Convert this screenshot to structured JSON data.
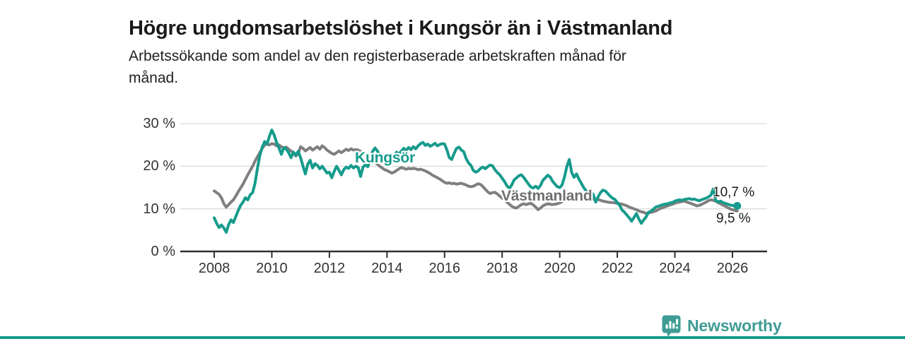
{
  "chart_data": {
    "type": "line",
    "title": "Högre ungdomsarbetslöshet i Kungsör än i Västmanland",
    "subtitle_lines": [
      "Arbetssökande som andel av den registerbaserade arbetskraften månad för",
      "månad."
    ],
    "unit": "%",
    "grid": true,
    "legend_position": "inline-labels",
    "ylim": [
      0,
      30
    ],
    "xlim": [
      2006.8,
      2027.2
    ],
    "x_start": 2008,
    "points_per_year": 12,
    "x_ticks": [
      {
        "value": 2008,
        "label": "2008"
      },
      {
        "value": 2010,
        "label": "2010"
      },
      {
        "value": 2012,
        "label": "2012"
      },
      {
        "value": 2014,
        "label": "2014"
      },
      {
        "value": 2016,
        "label": "2016"
      },
      {
        "value": 2018,
        "label": "2018"
      },
      {
        "value": 2020,
        "label": "2020"
      },
      {
        "value": 2022,
        "label": "2022"
      },
      {
        "value": 2024,
        "label": "2024"
      },
      {
        "value": 2026,
        "label": "2026"
      }
    ],
    "y_ticks": [
      {
        "value": 30,
        "label": "30 %"
      },
      {
        "value": 20,
        "label": "20 %"
      },
      {
        "value": 10,
        "label": "10 %"
      },
      {
        "value": 0,
        "label": "0 %"
      }
    ],
    "series": [
      {
        "id": "kungsor",
        "name": "Kungsör",
        "color": "#169b8c",
        "end_label": "10,7 %",
        "end_value": 10.7,
        "values": [
          7.9,
          6.6,
          5.6,
          6.2,
          5.5,
          4.5,
          6.3,
          7.4,
          6.8,
          8.2,
          9.6,
          10.8,
          11.6,
          12.6,
          12.1,
          13.3,
          13.8,
          16.0,
          19.5,
          22.5,
          24.5,
          25.8,
          25.2,
          27.0,
          28.5,
          27.3,
          25.6,
          24.3,
          22.8,
          24.4,
          24.0,
          23.2,
          22.0,
          23.3,
          22.6,
          23.5,
          22.0,
          20.0,
          18.2,
          20.5,
          21.4,
          19.6,
          20.6,
          20.2,
          19.4,
          20.0,
          19.2,
          18.4,
          18.6,
          17.3,
          18.8,
          20.0,
          19.0,
          18.0,
          19.2,
          19.8,
          19.5,
          20.2,
          19.6,
          20.0,
          19.7,
          17.6,
          19.8,
          20.3,
          19.9,
          21.5,
          23.5,
          24.3,
          23.6,
          22.5,
          21.8,
          21.2,
          21.5,
          22.3,
          21.8,
          22.6,
          23.3,
          22.8,
          23.6,
          24.2,
          23.7,
          24.4,
          23.9,
          24.6,
          24.1,
          24.8,
          25.3,
          25.6,
          24.9,
          25.2,
          24.7,
          25.0,
          25.4,
          24.8,
          25.1,
          25.3,
          25.2,
          23.8,
          22.0,
          21.6,
          23.0,
          24.2,
          24.5,
          23.8,
          23.4,
          21.8,
          20.8,
          20.2,
          19.0,
          18.6,
          18.9,
          19.5,
          19.8,
          19.4,
          19.9,
          20.3,
          20.1,
          19.2,
          18.5,
          18.0,
          17.2,
          16.4,
          15.4,
          14.8,
          15.6,
          16.8,
          17.3,
          17.8,
          18.0,
          17.4,
          16.6,
          15.8,
          15.1,
          14.9,
          15.3,
          14.8,
          15.5,
          16.7,
          17.3,
          17.9,
          17.5,
          16.5,
          15.8,
          15.2,
          15.0,
          15.6,
          17.5,
          20.0,
          21.6,
          18.5,
          17.4,
          18.2,
          17.0,
          16.0,
          15.0,
          14.2,
          13.5,
          13.8,
          13.4,
          11.6,
          12.8,
          13.8,
          14.4,
          14.2,
          13.6,
          13.0,
          12.5,
          12.2,
          11.5,
          10.8,
          9.7,
          9.2,
          8.5,
          7.9,
          7.1,
          8.0,
          8.9,
          7.6,
          6.6,
          7.4,
          8.1,
          9.2,
          9.4,
          9.9,
          10.4,
          10.6,
          10.8,
          11.0,
          11.1,
          11.2,
          11.4,
          11.5,
          11.8,
          12.0,
          12.1,
          12.0,
          12.2,
          12.3,
          12.4,
          12.2,
          12.3,
          12.1,
          11.9,
          12.1,
          12.3,
          12.5,
          12.8,
          13.2,
          14.7,
          12.0,
          11.6,
          11.8,
          11.5,
          11.3,
          11.1,
          10.9,
          10.8,
          10.7,
          10.7
        ]
      },
      {
        "id": "vastmanland",
        "name": "Västmanland",
        "color": "#7f7f7f",
        "end_label": "9,5 %",
        "end_value": 9.5,
        "values": [
          14.2,
          13.8,
          13.4,
          12.6,
          11.2,
          10.4,
          11.0,
          11.6,
          12.1,
          13.0,
          14.0,
          14.9,
          15.8,
          16.9,
          18.0,
          19.0,
          20.0,
          21.2,
          22.2,
          23.2,
          24.2,
          25.0,
          25.2,
          25.0,
          25.3,
          25.2,
          24.8,
          25.0,
          24.6,
          24.2,
          24.5,
          24.0,
          23.6,
          23.2,
          22.4,
          23.0,
          24.6,
          24.2,
          23.6,
          24.0,
          24.4,
          23.8,
          24.2,
          24.6,
          24.0,
          24.8,
          24.4,
          23.8,
          23.4,
          23.0,
          22.8,
          23.2,
          23.6,
          23.2,
          23.6,
          24.0,
          23.7,
          24.1,
          23.8,
          23.9,
          23.8,
          23.5,
          23.2,
          22.8,
          22.4,
          21.9,
          21.4,
          21.0,
          20.5,
          20.0,
          19.6,
          19.2,
          19.0,
          18.7,
          18.4,
          18.6,
          19.0,
          19.4,
          19.7,
          19.5,
          19.3,
          19.5,
          19.4,
          19.5,
          19.4,
          19.2,
          19.3,
          19.1,
          18.9,
          18.6,
          18.3,
          17.9,
          17.6,
          17.3,
          17.0,
          16.6,
          16.2,
          16.0,
          16.1,
          15.9,
          16.0,
          15.8,
          15.9,
          16.0,
          15.8,
          15.6,
          15.3,
          15.2,
          15.3,
          15.6,
          15.9,
          15.7,
          15.2,
          14.6,
          14.0,
          13.6,
          13.8,
          13.9,
          13.5,
          13.0,
          12.5,
          12.2,
          11.6,
          11.1,
          10.6,
          10.3,
          10.2,
          10.6,
          11.0,
          11.2,
          11.0,
          11.2,
          11.3,
          10.9,
          10.4,
          9.8,
          10.2,
          10.7,
          11.0,
          11.2,
          11.1,
          11.0,
          11.1,
          11.2,
          11.4,
          11.7,
          12.4,
          13.0,
          13.4,
          13.5,
          13.6,
          13.4,
          13.2,
          13.0,
          12.9,
          12.8,
          12.6,
          12.5,
          12.3,
          12.1,
          12.2,
          12.0,
          11.8,
          11.7,
          11.6,
          11.5,
          11.5,
          11.4,
          11.3,
          11.2,
          11.1,
          10.9,
          10.7,
          10.4,
          10.2,
          10.0,
          9.8,
          9.5,
          9.3,
          9.2,
          8.9,
          9.0,
          9.2,
          9.3,
          9.5,
          9.8,
          10.1,
          10.3,
          10.5,
          10.7,
          10.9,
          11.1,
          11.3,
          11.5,
          11.6,
          11.7,
          11.8,
          11.6,
          11.4,
          11.2,
          11.0,
          10.7,
          10.8,
          11.0,
          11.3,
          11.6,
          11.9,
          12.1,
          12.0,
          11.8,
          11.5,
          11.2,
          10.9,
          10.6,
          10.3,
          10.0,
          9.8,
          9.6,
          9.5
        ]
      }
    ],
    "colors": {
      "axis": "#303030",
      "grid": "#dcdcdc",
      "tick_text": "#333333",
      "accent_bar": "#169b8c"
    }
  },
  "footer": {
    "brand": "Newsworthy"
  }
}
